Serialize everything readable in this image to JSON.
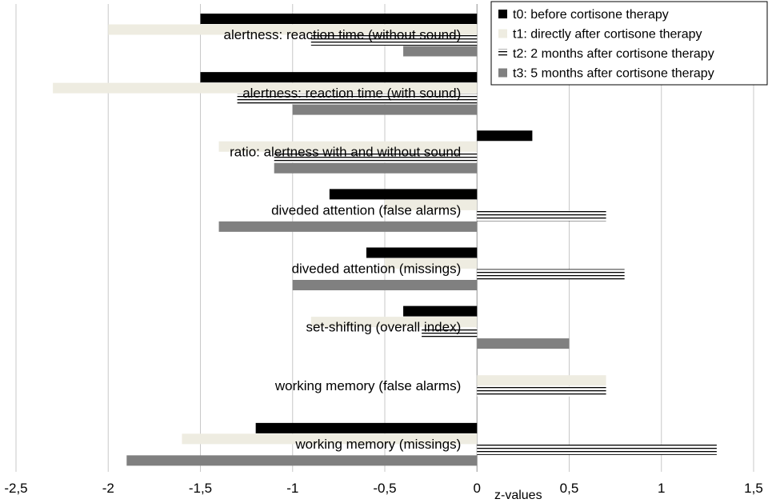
{
  "chart_data": {
    "type": "bar",
    "orientation": "horizontal",
    "xlabel": "z-values",
    "ylabel": "",
    "title": "",
    "xlim": [
      -2.5,
      1.5
    ],
    "xticks": [
      -2.5,
      -2,
      -1.5,
      -1,
      -0.5,
      0,
      0.5,
      1,
      1.5
    ],
    "xtick_labels": [
      "-2,5",
      "-2",
      "-1,5",
      "-1",
      "-0,5",
      "0",
      "0,5",
      "1",
      "1,5"
    ],
    "grid": "vertical",
    "legend_position": "top-right",
    "categories": [
      "alertness: reaction time (without sound)",
      "alertness: reaction time (with sound)",
      "ratio: alertness with and without sound",
      "diveded attention (false alarms)",
      "diveded attention (missings)",
      "set-shifting (overall index)",
      "working memory (false alarms)",
      "working memory (missings)"
    ],
    "series": [
      {
        "name": "t0: before cortisone therapy",
        "color": "#000000",
        "pattern": "solid",
        "values": [
          -1.5,
          -1.5,
          0.3,
          -0.8,
          -0.6,
          -0.4,
          0,
          -1.2
        ]
      },
      {
        "name": "t1: directly after cortisone therapy",
        "color": "#eeece1",
        "pattern": "solid",
        "values": [
          -2.0,
          -2.3,
          -1.4,
          -0.5,
          -0.5,
          -0.9,
          0.7,
          -1.6
        ]
      },
      {
        "name": "t2: 2 months after cortisone therapy",
        "color": "#000000",
        "pattern": "horizontal-lines",
        "values": [
          -0.9,
          -1.3,
          -1.1,
          0.7,
          0.8,
          -0.3,
          0.7,
          1.3
        ]
      },
      {
        "name": "t3: 5 months after cortisone therapy",
        "color": "#808080",
        "pattern": "solid",
        "values": [
          -0.4,
          -1.0,
          -1.1,
          -1.4,
          -1.0,
          0.5,
          0,
          -1.9
        ]
      }
    ]
  }
}
